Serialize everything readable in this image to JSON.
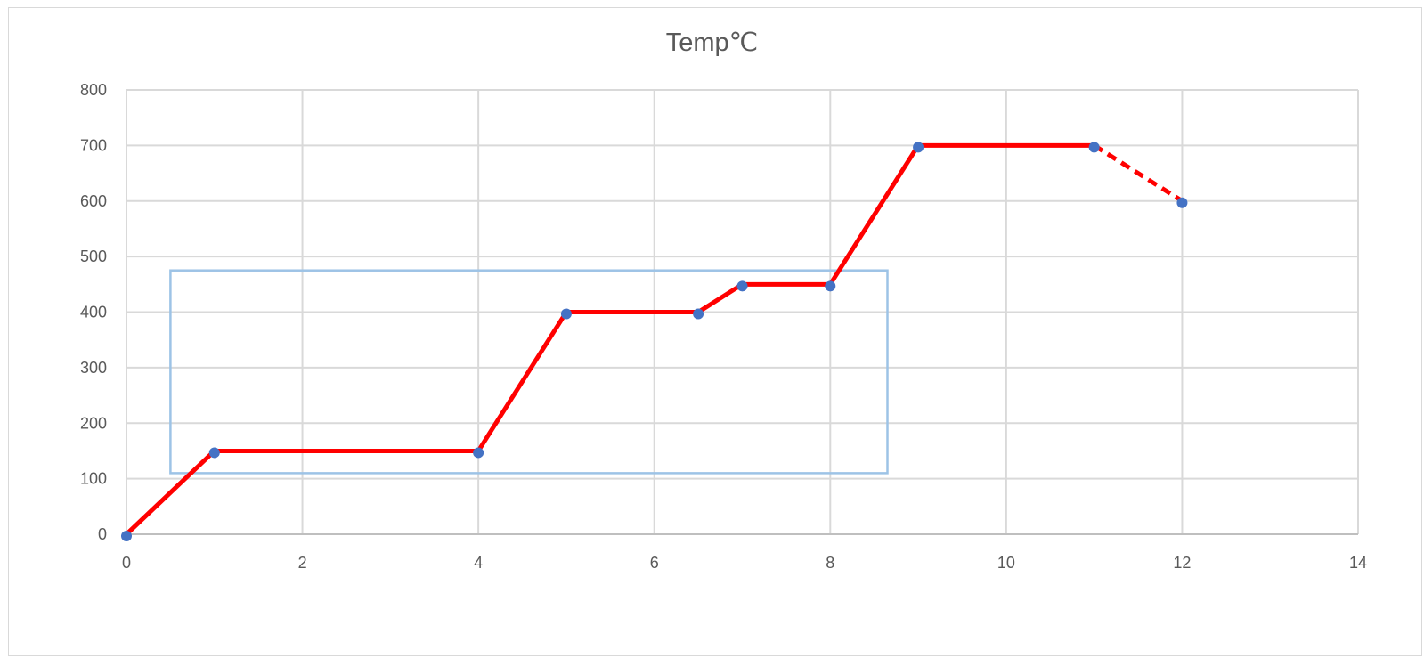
{
  "chart_data": {
    "type": "scatter",
    "title": "Temp℃",
    "xlabel": "",
    "ylabel": "",
    "xlim": [
      0,
      14
    ],
    "ylim": [
      0,
      800
    ],
    "x_ticks": [
      "0",
      "2",
      "4",
      "6",
      "8",
      "10",
      "12",
      "14"
    ],
    "y_ticks": [
      "0",
      "100",
      "200",
      "300",
      "400",
      "500",
      "600",
      "700",
      "800"
    ],
    "grid": true,
    "legend": "none",
    "series": [
      {
        "points": [
          [
            0,
            0
          ],
          [
            1,
            150
          ],
          [
            4,
            150
          ],
          [
            5,
            400
          ],
          [
            6.5,
            400
          ],
          [
            7,
            450
          ],
          [
            8,
            450
          ],
          [
            9,
            700
          ],
          [
            11,
            700
          ],
          [
            12,
            600
          ]
        ],
        "marker_color": "#4472c4"
      }
    ],
    "overlay_line": {
      "color": "#ff0000",
      "solid": [
        [
          0,
          0
        ],
        [
          1,
          150
        ],
        [
          4,
          150
        ],
        [
          5,
          400
        ],
        [
          6.5,
          400
        ],
        [
          7,
          450
        ],
        [
          8,
          450
        ],
        [
          9,
          700
        ],
        [
          11,
          700
        ]
      ],
      "dashed": [
        [
          11,
          700
        ],
        [
          12,
          600
        ]
      ]
    },
    "highlight_box": {
      "color": "#9dc3e6",
      "x_range": [
        0.5,
        8.65
      ],
      "y_range": [
        110,
        475
      ]
    }
  }
}
